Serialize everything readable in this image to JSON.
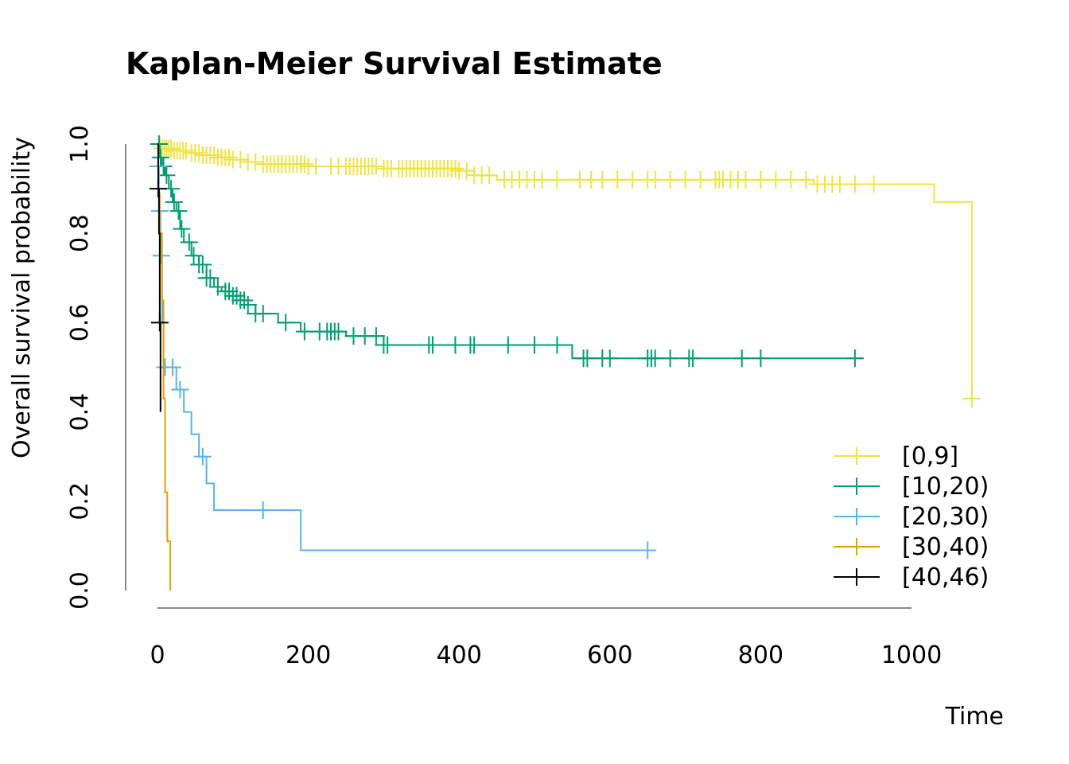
{
  "chart_data": {
    "type": "line",
    "title": "Kaplan-Meier Survival Estimate",
    "xlabel": "Time",
    "ylabel": "Overall survival probability",
    "xlim": [
      0,
      1000
    ],
    "ylim": [
      0,
      1
    ],
    "x_ticks": [
      "0",
      "200",
      "400",
      "600",
      "800",
      "1000"
    ],
    "y_ticks": [
      "0.0",
      "0.2",
      "0.4",
      "0.6",
      "0.8",
      "1.0"
    ],
    "grid": false,
    "legend_position": "bottom-right",
    "series": [
      {
        "name": "[0,9]",
        "color": "#F0E442",
        "steps": [
          [
            0,
            1.0
          ],
          [
            5,
            0.99
          ],
          [
            20,
            0.985
          ],
          [
            40,
            0.98
          ],
          [
            60,
            0.975
          ],
          [
            80,
            0.97
          ],
          [
            100,
            0.965
          ],
          [
            120,
            0.96
          ],
          [
            140,
            0.955
          ],
          [
            200,
            0.95
          ],
          [
            300,
            0.945
          ],
          [
            400,
            0.94
          ],
          [
            420,
            0.93
          ],
          [
            450,
            0.92
          ],
          [
            870,
            0.91
          ],
          [
            1030,
            0.87
          ],
          [
            1080,
            0.43
          ]
        ],
        "censor_x": [
          3,
          6,
          9,
          12,
          15,
          18,
          22,
          26,
          30,
          34,
          38,
          45,
          50,
          55,
          60,
          65,
          70,
          75,
          80,
          85,
          90,
          95,
          100,
          110,
          120,
          130,
          140,
          145,
          150,
          155,
          160,
          165,
          170,
          175,
          180,
          185,
          190,
          195,
          200,
          210,
          230,
          240,
          250,
          255,
          260,
          265,
          270,
          275,
          280,
          285,
          290,
          300,
          305,
          310,
          320,
          325,
          330,
          335,
          340,
          345,
          350,
          355,
          360,
          365,
          370,
          375,
          380,
          385,
          390,
          395,
          400,
          410,
          420,
          430,
          440,
          460,
          470,
          480,
          490,
          500,
          510,
          530,
          560,
          575,
          590,
          610,
          630,
          650,
          660,
          680,
          700,
          720,
          740,
          745,
          750,
          760,
          770,
          780,
          800,
          820,
          840,
          860,
          875,
          885,
          895,
          905,
          925,
          950,
          1080
        ]
      },
      {
        "name": "[10,20)",
        "color": "#009E73",
        "steps": [
          [
            0,
            1.0
          ],
          [
            3,
            0.97
          ],
          [
            6,
            0.95
          ],
          [
            10,
            0.93
          ],
          [
            15,
            0.9
          ],
          [
            20,
            0.87
          ],
          [
            25,
            0.85
          ],
          [
            30,
            0.81
          ],
          [
            35,
            0.78
          ],
          [
            45,
            0.75
          ],
          [
            55,
            0.73
          ],
          [
            65,
            0.7
          ],
          [
            75,
            0.68
          ],
          [
            85,
            0.67
          ],
          [
            100,
            0.66
          ],
          [
            110,
            0.65
          ],
          [
            120,
            0.64
          ],
          [
            130,
            0.62
          ],
          [
            160,
            0.6
          ],
          [
            190,
            0.58
          ],
          [
            250,
            0.57
          ],
          [
            300,
            0.55
          ],
          [
            550,
            0.52
          ],
          [
            935,
            0.52
          ]
        ],
        "censor_x": [
          2,
          4,
          8,
          12,
          18,
          22,
          28,
          32,
          42,
          48,
          55,
          60,
          65,
          70,
          80,
          90,
          95,
          100,
          105,
          110,
          115,
          120,
          130,
          140,
          170,
          195,
          215,
          225,
          230,
          235,
          240,
          260,
          275,
          290,
          300,
          305,
          360,
          365,
          395,
          415,
          420,
          465,
          500,
          530,
          565,
          570,
          590,
          600,
          650,
          655,
          660,
          680,
          705,
          710,
          775,
          800,
          925
        ]
      },
      {
        "name": "[20,30)",
        "color": "#56B4E9",
        "steps": [
          [
            0,
            0.95
          ],
          [
            2,
            0.85
          ],
          [
            4,
            0.75
          ],
          [
            6,
            0.6
          ],
          [
            8,
            0.5
          ],
          [
            25,
            0.45
          ],
          [
            35,
            0.4
          ],
          [
            45,
            0.35
          ],
          [
            55,
            0.3
          ],
          [
            65,
            0.24
          ],
          [
            75,
            0.18
          ],
          [
            190,
            0.09
          ],
          [
            660,
            0.09
          ]
        ],
        "censor_x": [
          1,
          3,
          5,
          10,
          20,
          30,
          60,
          140,
          650
        ]
      },
      {
        "name": "[30,40)",
        "color": "#E69F00",
        "steps": [
          [
            0,
            0.89
          ],
          [
            3,
            0.8
          ],
          [
            6,
            0.65
          ],
          [
            8,
            0.43
          ],
          [
            10,
            0.22
          ],
          [
            13,
            0.11
          ],
          [
            17,
            0.0
          ]
        ],
        "censor_x": []
      },
      {
        "name": "[40,46)",
        "color": "#000000",
        "steps": [
          [
            0,
            1.0
          ],
          [
            1,
            0.9
          ],
          [
            2,
            0.8
          ],
          [
            3,
            0.6
          ],
          [
            4,
            0.4
          ]
        ],
        "censor_x": [
          1,
          3
        ]
      }
    ]
  }
}
